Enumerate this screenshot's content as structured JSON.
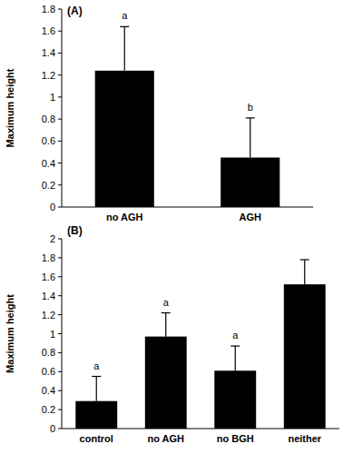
{
  "chart_data": [
    {
      "type": "bar",
      "title": "(A)",
      "y_label": "Maximum height",
      "categories": [
        "no AGH",
        "AGH"
      ],
      "values": [
        1.24,
        0.45
      ],
      "errors": [
        0.4,
        0.36
      ],
      "letters": [
        "a",
        "b"
      ],
      "color": "#000000",
      "ylim": [
        0,
        1.8
      ],
      "yticks": [
        0,
        0.2,
        0.4,
        0.6,
        0.8,
        1,
        1.2,
        1.4,
        1.6,
        1.8
      ],
      "grid": false
    },
    {
      "type": "bar",
      "title": "(B)",
      "y_label": "Maximum height",
      "categories": [
        "control",
        "no AGH",
        "no BGH",
        "neither"
      ],
      "values": [
        0.29,
        0.97,
        0.61,
        1.52
      ],
      "errors": [
        0.26,
        0.25,
        0.26,
        0.26
      ],
      "letters": [
        "a",
        "a",
        "a",
        null
      ],
      "color": "#000000",
      "ylim": [
        0,
        2
      ],
      "yticks": [
        0,
        0.2,
        0.4,
        0.6,
        0.8,
        1,
        1.2,
        1.4,
        1.6,
        1.8,
        2
      ],
      "grid": false
    }
  ]
}
